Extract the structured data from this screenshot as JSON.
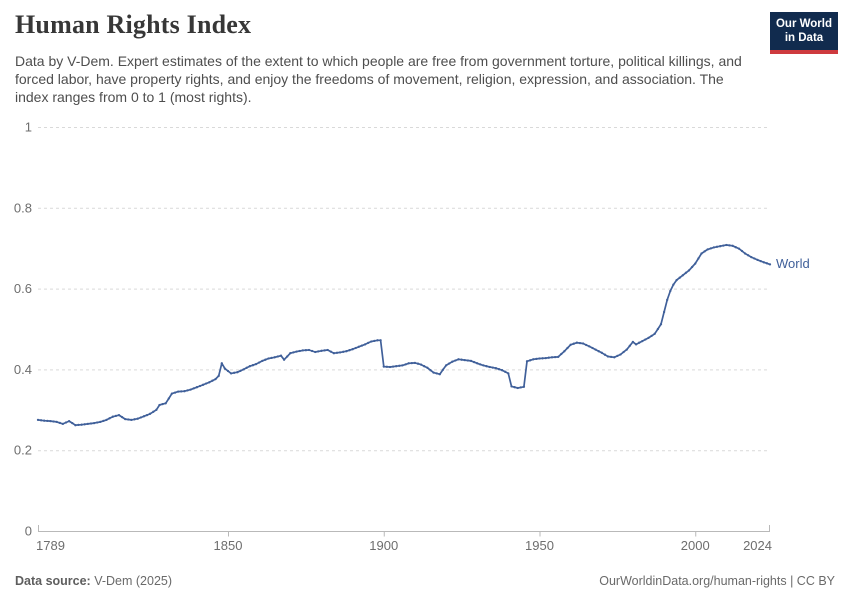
{
  "header": {
    "title": "Human Rights Index",
    "subtitle": "Data by V-Dem. Expert estimates of the extent to which people are free from government torture, political killings, and forced labor, have property rights, and enjoy the freedoms of movement, religion, expression, and association. The index ranges from 0 to 1 (most rights).",
    "logo": {
      "line1": "Our World",
      "line2": "in Data",
      "bg_color": "#112B4E",
      "accent_color": "#CE3A3E"
    }
  },
  "chart_data": {
    "type": "line",
    "title": "Human Rights Index",
    "xlabel": "",
    "ylabel": "",
    "x_axis": {
      "range": [
        1789,
        2024
      ],
      "ticks": [
        1789,
        1850,
        1900,
        1950,
        2000,
        2024
      ]
    },
    "y_axis": {
      "range": [
        0,
        1
      ],
      "ticks": [
        1,
        0.8,
        0.6,
        0.4,
        0.2,
        0
      ]
    },
    "grid": "horizontal-dashed",
    "legend_position": "end-of-line",
    "colors": {
      "grid": "#d9d9d9",
      "axis": "#b9b9b9",
      "tick_text": "#6e6e6e"
    },
    "series": [
      {
        "name": "World",
        "color": "#40609A",
        "points": [
          [
            1789,
            0.275
          ],
          [
            1791,
            0.273
          ],
          [
            1793,
            0.272
          ],
          [
            1795,
            0.27
          ],
          [
            1797,
            0.265
          ],
          [
            1799,
            0.272
          ],
          [
            1801,
            0.262
          ],
          [
            1803,
            0.263
          ],
          [
            1805,
            0.265
          ],
          [
            1807,
            0.267
          ],
          [
            1809,
            0.27
          ],
          [
            1811,
            0.275
          ],
          [
            1813,
            0.283
          ],
          [
            1815,
            0.287
          ],
          [
            1817,
            0.277
          ],
          [
            1819,
            0.275
          ],
          [
            1821,
            0.278
          ],
          [
            1823,
            0.284
          ],
          [
            1825,
            0.29
          ],
          [
            1827,
            0.3
          ],
          [
            1828,
            0.312
          ],
          [
            1830,
            0.316
          ],
          [
            1832,
            0.34
          ],
          [
            1834,
            0.345
          ],
          [
            1836,
            0.346
          ],
          [
            1838,
            0.35
          ],
          [
            1840,
            0.356
          ],
          [
            1842,
            0.362
          ],
          [
            1844,
            0.368
          ],
          [
            1846,
            0.376
          ],
          [
            1847,
            0.384
          ],
          [
            1848,
            0.415
          ],
          [
            1849,
            0.402
          ],
          [
            1851,
            0.39
          ],
          [
            1853,
            0.393
          ],
          [
            1855,
            0.4
          ],
          [
            1857,
            0.408
          ],
          [
            1859,
            0.413
          ],
          [
            1861,
            0.421
          ],
          [
            1863,
            0.427
          ],
          [
            1865,
            0.43
          ],
          [
            1867,
            0.434
          ],
          [
            1868,
            0.424
          ],
          [
            1870,
            0.44
          ],
          [
            1872,
            0.444
          ],
          [
            1874,
            0.447
          ],
          [
            1876,
            0.448
          ],
          [
            1878,
            0.443
          ],
          [
            1880,
            0.446
          ],
          [
            1882,
            0.448
          ],
          [
            1884,
            0.44
          ],
          [
            1886,
            0.442
          ],
          [
            1888,
            0.445
          ],
          [
            1890,
            0.45
          ],
          [
            1892,
            0.456
          ],
          [
            1894,
            0.462
          ],
          [
            1896,
            0.469
          ],
          [
            1898,
            0.472
          ],
          [
            1899,
            0.472
          ],
          [
            1900,
            0.407
          ],
          [
            1902,
            0.406
          ],
          [
            1904,
            0.408
          ],
          [
            1906,
            0.41
          ],
          [
            1908,
            0.415
          ],
          [
            1910,
            0.416
          ],
          [
            1912,
            0.412
          ],
          [
            1914,
            0.404
          ],
          [
            1916,
            0.392
          ],
          [
            1918,
            0.388
          ],
          [
            1920,
            0.41
          ],
          [
            1922,
            0.419
          ],
          [
            1924,
            0.425
          ],
          [
            1926,
            0.423
          ],
          [
            1928,
            0.421
          ],
          [
            1930,
            0.415
          ],
          [
            1932,
            0.41
          ],
          [
            1934,
            0.406
          ],
          [
            1936,
            0.403
          ],
          [
            1938,
            0.398
          ],
          [
            1940,
            0.39
          ],
          [
            1941,
            0.358
          ],
          [
            1943,
            0.354
          ],
          [
            1945,
            0.357
          ],
          [
            1946,
            0.42
          ],
          [
            1948,
            0.425
          ],
          [
            1950,
            0.427
          ],
          [
            1952,
            0.428
          ],
          [
            1954,
            0.43
          ],
          [
            1956,
            0.431
          ],
          [
            1958,
            0.445
          ],
          [
            1960,
            0.461
          ],
          [
            1962,
            0.466
          ],
          [
            1964,
            0.464
          ],
          [
            1966,
            0.457
          ],
          [
            1968,
            0.449
          ],
          [
            1970,
            0.441
          ],
          [
            1972,
            0.432
          ],
          [
            1974,
            0.43
          ],
          [
            1976,
            0.437
          ],
          [
            1978,
            0.449
          ],
          [
            1980,
            0.468
          ],
          [
            1981,
            0.462
          ],
          [
            1983,
            0.47
          ],
          [
            1985,
            0.478
          ],
          [
            1987,
            0.488
          ],
          [
            1989,
            0.512
          ],
          [
            1990,
            0.542
          ],
          [
            1991,
            0.572
          ],
          [
            1992,
            0.594
          ],
          [
            1993,
            0.61
          ],
          [
            1994,
            0.621
          ],
          [
            1996,
            0.633
          ],
          [
            1998,
            0.645
          ],
          [
            2000,
            0.662
          ],
          [
            2002,
            0.687
          ],
          [
            2004,
            0.697
          ],
          [
            2006,
            0.702
          ],
          [
            2008,
            0.705
          ],
          [
            2010,
            0.708
          ],
          [
            2012,
            0.706
          ],
          [
            2014,
            0.699
          ],
          [
            2016,
            0.687
          ],
          [
            2018,
            0.678
          ],
          [
            2020,
            0.671
          ],
          [
            2022,
            0.665
          ],
          [
            2024,
            0.66
          ]
        ]
      }
    ]
  },
  "footer": {
    "source_label": "Data source:",
    "source_value": "V-Dem (2025)",
    "credit": "OurWorldinData.org/human-rights | CC BY"
  }
}
